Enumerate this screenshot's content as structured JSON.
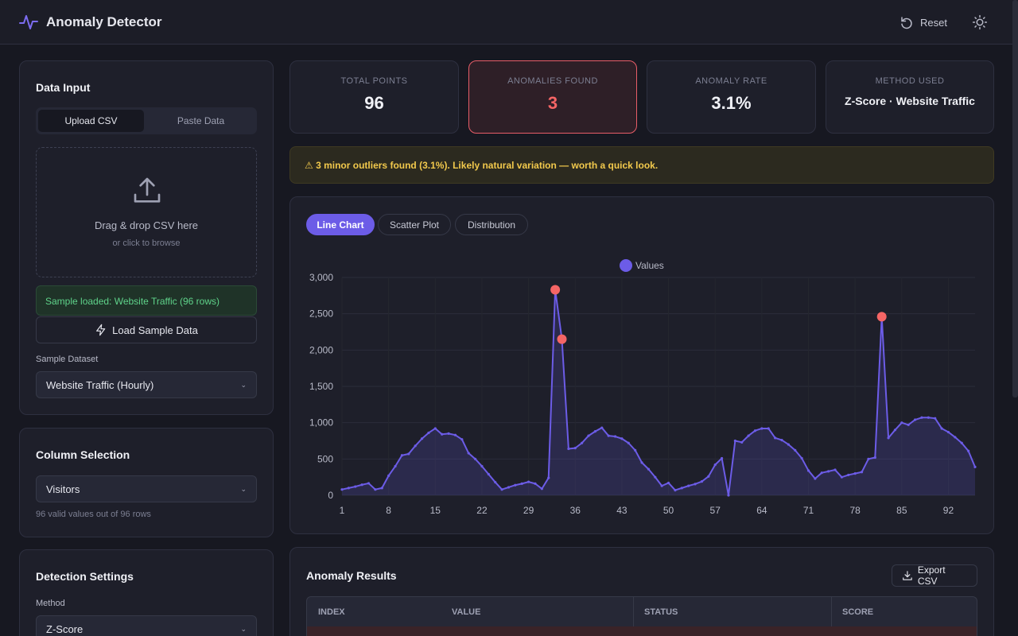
{
  "header": {
    "title": "Anomaly Detector",
    "reset": "Reset"
  },
  "data_input": {
    "title": "Data Input",
    "tabs": [
      "Upload CSV",
      "Paste Data"
    ],
    "drop_title": "Drag & drop CSV here",
    "drop_hint": "or click to browse",
    "status": "Sample loaded: Website Traffic (96 rows)",
    "load_button": "Load Sample Data",
    "sample_label": "Sample Dataset",
    "sample_value": "Website Traffic (Hourly)"
  },
  "column_selection": {
    "title": "Column Selection",
    "column": "Visitors",
    "hint": "96 valid values out of 96 rows"
  },
  "detection_settings": {
    "title": "Detection Settings",
    "method_label": "Method",
    "method": "Z-Score"
  },
  "stats": [
    {
      "label": "TOTAL POINTS",
      "value": 96
    },
    {
      "label": "ANOMALIES FOUND",
      "value": 3
    },
    {
      "label": "ANOMALY RATE",
      "value": "3.1%"
    },
    {
      "label": "METHOD USED",
      "value": "Z-Score · Website Traffic"
    }
  ],
  "alert": "⚠ 3 minor outliers found (3.1%). Likely natural variation — worth a quick look.",
  "chart_tabs": [
    "Line Chart",
    "Scatter Plot",
    "Distribution"
  ],
  "chart_data": {
    "type": "line",
    "x": [
      1,
      2,
      3,
      4,
      5,
      6,
      7,
      8,
      9,
      10,
      11,
      12,
      13,
      14,
      15,
      16,
      17,
      18,
      19,
      20,
      21,
      22,
      23,
      24,
      25,
      26,
      27,
      28,
      29,
      30,
      31,
      32,
      33,
      34,
      35,
      36,
      37,
      38,
      39,
      40,
      41,
      42,
      43,
      44,
      45,
      46,
      47,
      48,
      49,
      50,
      51,
      52,
      53,
      54,
      55,
      56,
      57,
      58,
      59,
      60,
      61,
      62,
      63,
      64,
      65,
      66,
      67,
      68,
      69,
      70,
      71,
      72,
      73,
      74,
      75,
      76,
      77,
      78,
      79,
      80,
      81,
      82,
      83,
      84,
      85,
      86,
      87,
      88,
      89,
      90,
      91,
      92,
      93,
      94,
      95,
      96
    ],
    "series": [
      {
        "name": "Values",
        "color": "#6c5ce7",
        "values": [
          80,
          100,
          120,
          145,
          165,
          80,
          100,
          270,
          400,
          550,
          570,
          680,
          780,
          860,
          920,
          840,
          850,
          830,
          770,
          580,
          500,
          400,
          290,
          180,
          80,
          110,
          140,
          160,
          185,
          160,
          90,
          240,
          2830,
          2150,
          640,
          650,
          720,
          820,
          880,
          930,
          820,
          810,
          780,
          720,
          620,
          450,
          360,
          250,
          130,
          170,
          70,
          100,
          130,
          155,
          190,
          260,
          420,
          510,
          0,
          750,
          730,
          820,
          890,
          920,
          920,
          790,
          760,
          700,
          620,
          510,
          340,
          230,
          310,
          330,
          350,
          250,
          280,
          300,
          320,
          500,
          520,
          2460,
          790,
          900,
          1000,
          970,
          1040,
          1070,
          1070,
          1060,
          920,
          870,
          800,
          720,
          610,
          390
        ]
      }
    ],
    "highlight_x": [
      33,
      34,
      82
    ],
    "highlight_color": "#f56565",
    "xlim": [
      1,
      96
    ],
    "xticks": [
      1,
      8,
      15,
      22,
      29,
      36,
      43,
      50,
      57,
      64,
      71,
      78,
      85,
      92
    ],
    "ylim": [
      0,
      3000
    ],
    "yticks": [
      0,
      500,
      {
        "value": 1000,
        "label": "1,000"
      },
      {
        "value": 1500,
        "label": "1,500"
      },
      {
        "value": 2000,
        "label": "2,000"
      },
      {
        "value": 2500,
        "label": "2,500"
      },
      {
        "value": 3000,
        "label": "3,000"
      }
    ],
    "grid": true,
    "legend": "top"
  },
  "results": {
    "title": "Anomaly Results",
    "export": "Export CSV",
    "columns": [
      "INDEX",
      "VALUE",
      "STATUS",
      "SCORE"
    ]
  }
}
